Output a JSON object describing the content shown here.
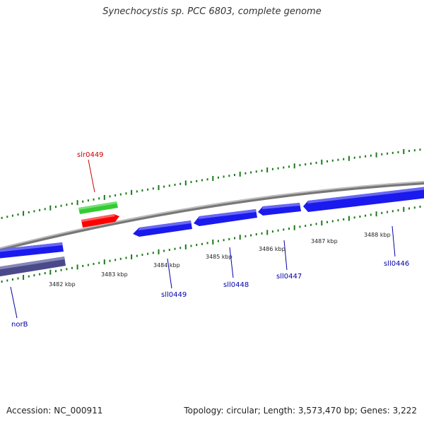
{
  "title": "Synechocystis sp. PCC 6803, complete genome",
  "footer": {
    "accession": "Accession: NC_000911",
    "summary": "Topology: circular; Length: 3,573,470 bp; Genes: 3,222"
  },
  "colors": {
    "backbone": "#8a8a8a",
    "tick": "#1a7a1a",
    "forward_gene_selected": "#33cc33",
    "highlight_gene": "#ff0000",
    "reverse_gene": "#1a1aee",
    "reverse_gene_dark": "#4a4a8a",
    "reverse_label": "#0000aa",
    "forward_label": "#cc0000"
  },
  "scale": {
    "unit": "kbp",
    "labels": [
      "3482 kbp",
      "3483 kbp",
      "3484 kbp",
      "3485 kbp",
      "3486 kbp",
      "3487 kbp",
      "3488 kbp"
    ]
  },
  "genes": [
    {
      "name": "slr0449",
      "strand": "forward",
      "color": "#ff0000"
    },
    {
      "name": "",
      "strand": "forward",
      "color": "#33cc33"
    },
    {
      "name": "norB",
      "strand": "reverse",
      "color": "#4a4a8a"
    },
    {
      "name": "",
      "strand": "reverse",
      "color": "#1a1aee"
    },
    {
      "name": "sll0449",
      "strand": "reverse",
      "color": "#1a1aee"
    },
    {
      "name": "sll0448",
      "strand": "reverse",
      "color": "#1a1aee"
    },
    {
      "name": "sll0447",
      "strand": "reverse",
      "color": "#1a1aee"
    },
    {
      "name": "sll0446",
      "strand": "reverse",
      "color": "#1a1aee"
    }
  ]
}
